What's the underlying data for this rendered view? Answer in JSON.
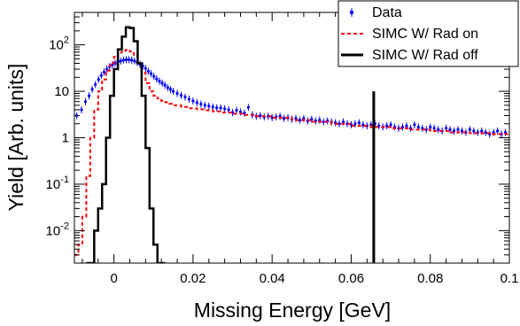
{
  "chart_data": {
    "type": "line",
    "xlabel": "Missing Energy [GeV]",
    "ylabel": "Yield [Arb. units]",
    "xlim": [
      -0.01,
      0.1
    ],
    "ylim": [
      0.002,
      500
    ],
    "yscale": "log",
    "grid": false,
    "legend_position": "top-right",
    "x_ticks": [
      0,
      0.02,
      0.04,
      0.06,
      0.08,
      0.1
    ],
    "x_tick_labels": [
      "0",
      "0.02",
      "0.04",
      "0.06",
      "0.08",
      "0.1"
    ],
    "y_ticks": [
      0.01,
      0.1,
      1,
      10,
      100
    ],
    "y_tick_labels": [
      {
        "base": "10",
        "exp": "-2"
      },
      {
        "base": "10",
        "exp": "-1"
      },
      {
        "base": "1",
        "exp": ""
      },
      {
        "base": "10",
        "exp": ""
      },
      {
        "base": "10",
        "exp": "2"
      }
    ],
    "series": [
      {
        "name": "Data",
        "style": "points",
        "color": "#0000ff",
        "x": [
          -0.0094,
          -0.0082,
          -0.0072,
          -0.0063,
          -0.0055,
          -0.0047,
          -0.0039,
          -0.0032,
          -0.0025,
          -0.0018,
          -0.0011,
          -0.0004,
          0.0003,
          0.001,
          0.0017,
          0.0024,
          0.0031,
          0.0038,
          0.0045,
          0.0052,
          0.0059,
          0.0066,
          0.0073,
          0.008,
          0.0087,
          0.0094,
          0.0101,
          0.0108,
          0.0115,
          0.0122,
          0.0129,
          0.0136,
          0.0143,
          0.015,
          0.016,
          0.017,
          0.018,
          0.019,
          0.02,
          0.021,
          0.022,
          0.023,
          0.024,
          0.025,
          0.026,
          0.027,
          0.028,
          0.029,
          0.03,
          0.031,
          0.032,
          0.033,
          0.034,
          0.035,
          0.036,
          0.037,
          0.038,
          0.039,
          0.04,
          0.041,
          0.042,
          0.043,
          0.044,
          0.045,
          0.046,
          0.047,
          0.048,
          0.049,
          0.05,
          0.051,
          0.052,
          0.053,
          0.054,
          0.055,
          0.056,
          0.057,
          0.058,
          0.059,
          0.06,
          0.061,
          0.062,
          0.063,
          0.064,
          0.065,
          0.066,
          0.067,
          0.068,
          0.069,
          0.07,
          0.071,
          0.072,
          0.073,
          0.074,
          0.075,
          0.076,
          0.077,
          0.078,
          0.079,
          0.08,
          0.081,
          0.082,
          0.083,
          0.084,
          0.085,
          0.086,
          0.087,
          0.088,
          0.089,
          0.09,
          0.091,
          0.092,
          0.093,
          0.094,
          0.095,
          0.096,
          0.097,
          0.098,
          0.099
        ],
        "y": [
          3.0,
          4.0,
          6.0,
          8.0,
          11.0,
          14.0,
          18.0,
          22.0,
          26.0,
          30.0,
          34.0,
          37.0,
          40.0,
          43.0,
          45.0,
          47.0,
          48.0,
          48.0,
          47.0,
          45.0,
          42.0,
          38.0,
          35.0,
          31.0,
          27.0,
          24.0,
          21.0,
          18.5,
          16.5,
          15.0,
          13.5,
          12.0,
          11.0,
          10.0,
          9.0,
          8.2,
          7.5,
          6.8,
          6.2,
          5.7,
          5.3,
          5.0,
          4.8,
          4.6,
          4.4,
          4.4,
          4.2,
          4.0,
          3.5,
          3.9,
          3.6,
          3.4,
          4.5,
          3.1,
          2.9,
          3.0,
          2.8,
          2.9,
          2.7,
          2.8,
          2.9,
          2.6,
          2.7,
          2.5,
          2.6,
          2.4,
          2.6,
          2.3,
          2.5,
          2.3,
          2.4,
          2.2,
          2.3,
          2.2,
          2.1,
          2.0,
          2.2,
          2.0,
          1.9,
          2.0,
          2.1,
          1.9,
          1.8,
          1.9,
          2.0,
          1.8,
          1.7,
          1.8,
          1.9,
          1.7,
          1.6,
          1.7,
          1.8,
          1.6,
          1.9,
          1.7,
          1.6,
          1.5,
          1.7,
          1.6,
          1.5,
          1.4,
          1.6,
          1.5,
          1.4,
          1.5,
          1.4,
          1.3,
          1.5,
          1.4,
          1.3,
          1.4,
          1.3,
          1.2,
          1.3,
          1.4,
          1.2,
          1.3
        ]
      },
      {
        "name": "SIMC W/ Rad on",
        "style": "dashed-step",
        "color": "#ff0000",
        "x": [
          -0.01,
          -0.009,
          -0.008,
          -0.007,
          -0.006,
          -0.005,
          -0.004,
          -0.003,
          -0.002,
          -0.001,
          0.0,
          0.001,
          0.002,
          0.003,
          0.004,
          0.005,
          0.006,
          0.007,
          0.008,
          0.009,
          0.01,
          0.011,
          0.012,
          0.013,
          0.014,
          0.015,
          0.017,
          0.019,
          0.021,
          0.023,
          0.025,
          0.027,
          0.03,
          0.033,
          0.036,
          0.04,
          0.045,
          0.05,
          0.055,
          0.06,
          0.065,
          0.07,
          0.075,
          0.08,
          0.085,
          0.09,
          0.095,
          0.1
        ],
        "y": [
          0.003,
          0.005,
          0.02,
          0.15,
          1.0,
          4.0,
          10.0,
          18.0,
          28.0,
          40.0,
          55.0,
          68.0,
          75.0,
          78.0,
          72.0,
          58.0,
          40.0,
          25.0,
          15.0,
          10.0,
          8.0,
          7.0,
          6.2,
          5.8,
          5.4,
          5.0,
          4.6,
          4.3,
          4.1,
          3.9,
          3.7,
          3.5,
          3.3,
          3.1,
          2.9,
          2.7,
          2.4,
          2.2,
          2.0,
          1.8,
          1.7,
          1.6,
          1.5,
          1.4,
          1.3,
          1.25,
          1.2,
          1.15
        ]
      },
      {
        "name": "SIMC W/ Rad off",
        "style": "step",
        "color": "#000000",
        "x": [
          -0.007,
          -0.006,
          -0.005,
          -0.004,
          -0.003,
          -0.002,
          -0.001,
          0.0,
          0.001,
          0.002,
          0.003,
          0.004,
          0.005,
          0.006,
          0.007,
          0.008,
          0.009,
          0.01,
          0.011,
          0.012
        ],
        "y": [
          0.002,
          0.002,
          0.01,
          0.03,
          0.1,
          1.0,
          8.0,
          30.0,
          80.0,
          150.0,
          240.0,
          230.0,
          120.0,
          40.0,
          8.0,
          0.6,
          0.03,
          0.005,
          0.002,
          0.002
        ]
      },
      {
        "name": "",
        "style": "vertical-line",
        "color": "#000000",
        "x": [
          0.0657
        ],
        "y": [
          10.0
        ]
      }
    ],
    "legend": [
      {
        "label": "Data",
        "style": "point",
        "color": "#0000ff"
      },
      {
        "label": "SIMC W/ Rad on",
        "style": "dashed",
        "color": "#ff0000"
      },
      {
        "label": "SIMC W/ Rad off",
        "style": "solid",
        "color": "#000000"
      }
    ]
  }
}
